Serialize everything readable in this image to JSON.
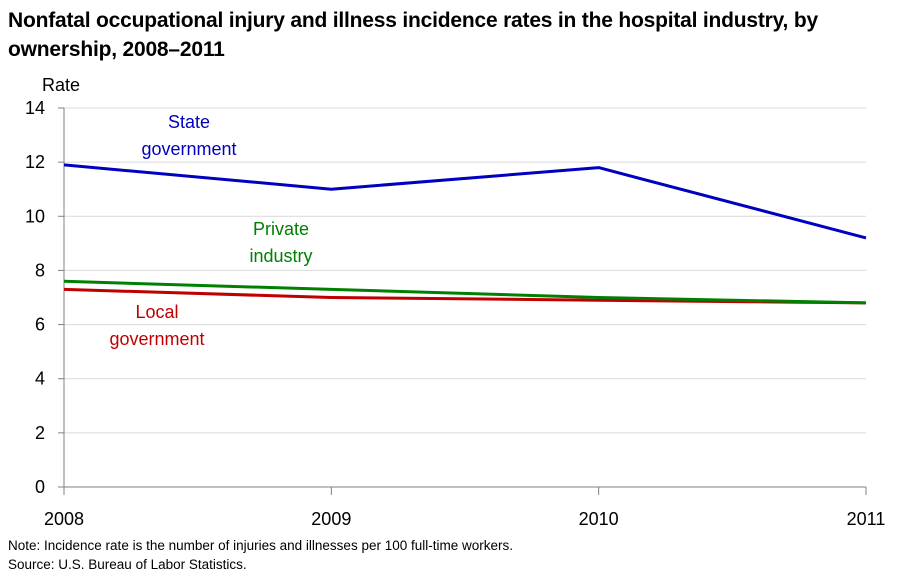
{
  "chart_data": {
    "type": "line",
    "title": "Nonfatal occupational injury and illness incidence rates in the hospital industry, by ownership, 2008–2011",
    "ylabel": "Rate",
    "xlabel": "",
    "x": [
      "2008",
      "2009",
      "2010",
      "2011"
    ],
    "ylim": [
      0,
      14
    ],
    "yticks": [
      "0",
      "2",
      "4",
      "6",
      "8",
      "10",
      "12",
      "14"
    ],
    "grid": true,
    "series": [
      {
        "name": "State government",
        "label_lines": [
          "State",
          "government"
        ],
        "values": [
          11.9,
          11.0,
          11.8,
          9.2
        ],
        "color": "#0000C0"
      },
      {
        "name": "Private industry",
        "label_lines": [
          "Private",
          "industry"
        ],
        "values": [
          7.6,
          7.3,
          7.0,
          6.8
        ],
        "color": "#008000"
      },
      {
        "name": "Local government",
        "label_lines": [
          "Local",
          "government"
        ],
        "values": [
          7.3,
          7.0,
          6.9,
          6.8
        ],
        "color": "#C00000"
      }
    ]
  },
  "notes": {
    "note": "Note: Incidence rate is the number of injuries and illnesses per 100 full-time workers.",
    "source": "Source: U.S. Bureau of Labor Statistics."
  }
}
